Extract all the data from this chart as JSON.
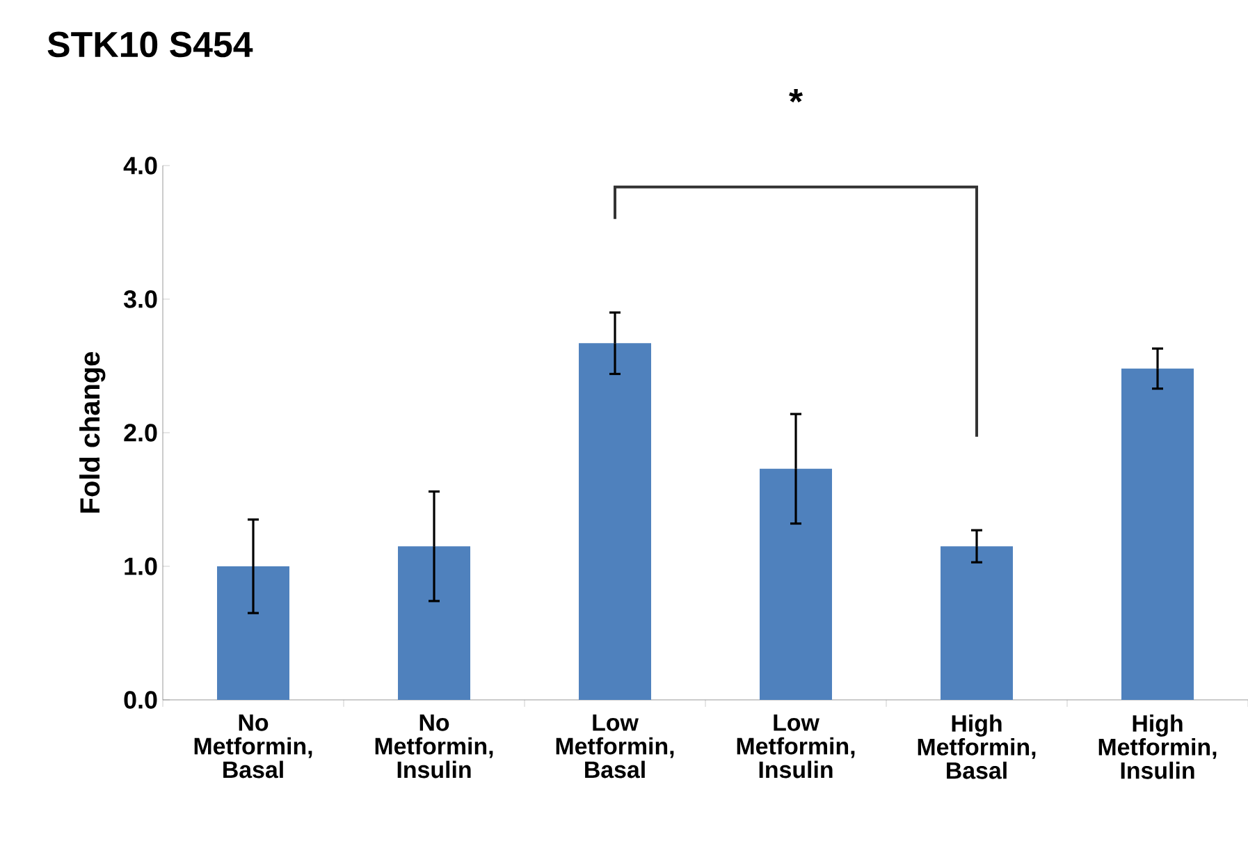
{
  "chart_data": {
    "type": "bar",
    "title": "STK10 S454",
    "ylabel": "Fold change",
    "categories": [
      "No Metformin, Basal",
      "No Metformin, Insulin",
      "Low Metformin, Basal",
      "Low Metformin, Insulin",
      "High Metformin, Basal",
      "High Metformin, Insulin"
    ],
    "values": [
      1.0,
      1.15,
      2.67,
      1.73,
      1.15,
      2.48
    ],
    "errors": [
      0.35,
      0.41,
      0.23,
      0.41,
      0.12,
      0.15
    ],
    "color": "#4f81bd",
    "ylim": [
      0,
      4
    ],
    "yticks": [
      {
        "value": 0,
        "label": "0.0"
      },
      {
        "value": 1,
        "label": "1.0"
      },
      {
        "value": 2,
        "label": "2.0"
      },
      {
        "value": 3,
        "label": "3.0"
      },
      {
        "value": 4,
        "label": "4.0"
      }
    ],
    "grid": false,
    "annotations": [
      "*"
    ]
  }
}
